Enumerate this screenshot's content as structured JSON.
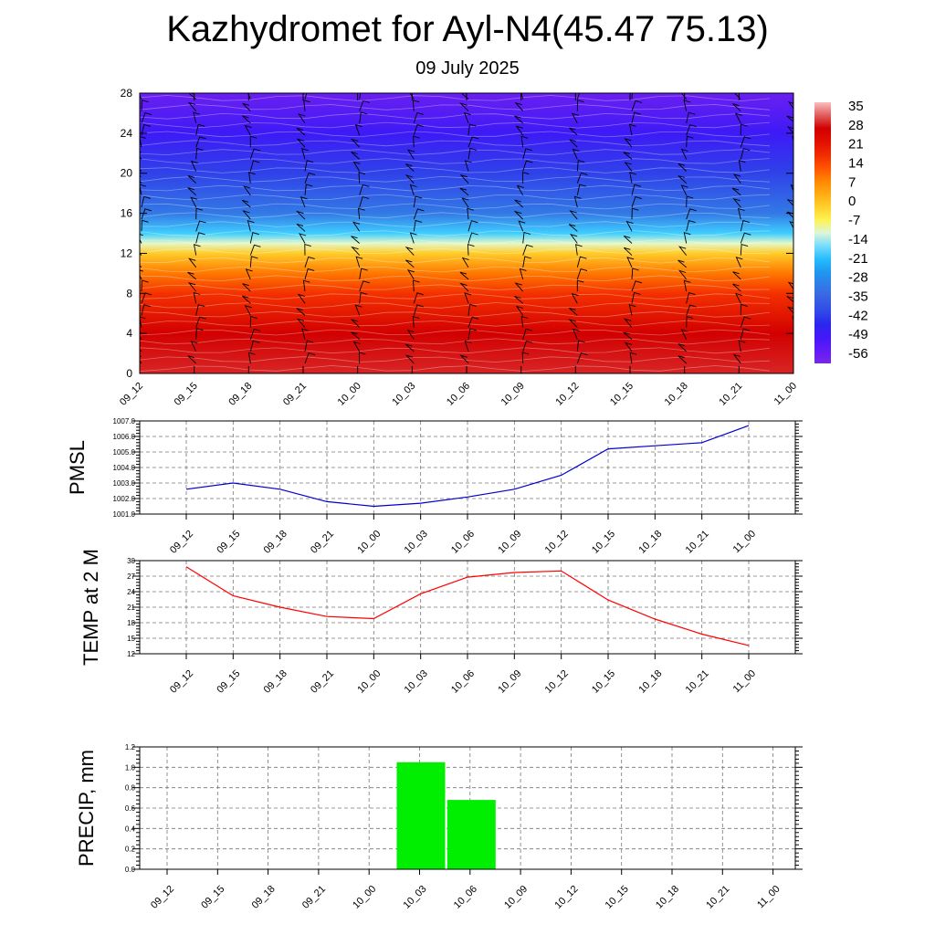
{
  "header": {
    "title": "Kazhydromet for Ayl-N4(45.47 75.13)",
    "subtitle": "09 July 2025"
  },
  "chart_data": [
    {
      "type": "heatmap",
      "xlabel": "",
      "ylabel": "",
      "x_ticks": [
        "09_12",
        "09_15",
        "09_18",
        "09_21",
        "10_00",
        "10_03",
        "10_06",
        "10_09",
        "10_12",
        "10_15",
        "10_18",
        "10_21",
        "11_00"
      ],
      "y_ticks": [
        0,
        4,
        8,
        12,
        16,
        20,
        24,
        28
      ],
      "ylim": [
        0,
        28
      ],
      "colorbar": {
        "labels": [
          35,
          28,
          21,
          14,
          7,
          0,
          -7,
          -14,
          -21,
          -28,
          -35,
          -42,
          -49,
          -56
        ],
        "range": [
          -63,
          38
        ]
      },
      "temperature_profile": [
        {
          "level": 0,
          "value": 30
        },
        {
          "level": 4,
          "value": 28
        },
        {
          "level": 8,
          "value": 17
        },
        {
          "level": 10,
          "value": 9
        },
        {
          "level": 12,
          "value": -2
        },
        {
          "level": 13,
          "value": -12
        },
        {
          "level": 14,
          "value": -20
        },
        {
          "level": 16,
          "value": -33
        },
        {
          "level": 20,
          "value": -44
        },
        {
          "level": 24,
          "value": -52
        },
        {
          "level": 28,
          "value": -60
        }
      ],
      "colors": {
        "hot": "#d40000",
        "orange": "#ff8c00",
        "yellow": "#ffff80",
        "cyan": "#33c0ff",
        "blue": "#3a5ee8",
        "violet": "#7a3cff"
      }
    },
    {
      "type": "line",
      "ylabel": "PMSL",
      "x": [
        "09_12",
        "09_15",
        "09_18",
        "09_21",
        "10_00",
        "10_03",
        "10_06",
        "10_09",
        "10_12",
        "10_15",
        "10_18",
        "10_21",
        "11_00"
      ],
      "values": [
        1002.6,
        1003.0,
        1002.6,
        1001.8,
        1001.5,
        1001.7,
        1002.1,
        1002.6,
        1003.5,
        1005.2,
        1005.4,
        1005.6,
        1006.7
      ],
      "y_ticks": [
        "1001.0",
        "1002.0",
        "1003.0",
        "1004.0",
        "1005.0",
        "1006.0",
        "1007.0"
      ],
      "ylim": [
        1001.0,
        1007.0
      ],
      "color": "#0000cc",
      "grid": true
    },
    {
      "type": "line",
      "ylabel": "TEMP at 2 M",
      "x": [
        "09_12",
        "09_15",
        "09_18",
        "09_21",
        "10_00",
        "10_03",
        "10_06",
        "10_09",
        "10_12",
        "10_15",
        "10_18",
        "10_21",
        "11_00"
      ],
      "values": [
        28.8,
        23.2,
        21.0,
        19.2,
        18.8,
        23.6,
        26.8,
        27.7,
        28.0,
        22.4,
        18.7,
        15.8,
        13.6
      ],
      "y_ticks": [
        "12",
        "15",
        "18",
        "21",
        "24",
        "27",
        "30"
      ],
      "ylim": [
        12,
        30
      ],
      "color": "#ff0000",
      "grid": true
    },
    {
      "type": "bar",
      "ylabel": "PRECIP, mm",
      "categories": [
        "09_12",
        "09_15",
        "09_18",
        "09_21",
        "10_00",
        "10_03",
        "10_06",
        "10_09",
        "10_12",
        "10_15",
        "10_18",
        "10_21",
        "11_00"
      ],
      "values": [
        0,
        0,
        0,
        0,
        0,
        1.05,
        0.68,
        0,
        0,
        0,
        0,
        0,
        0
      ],
      "y_ticks": [
        "0.0",
        "0.2",
        "0.4",
        "0.6",
        "0.8",
        "1.0",
        "1.2"
      ],
      "ylim": [
        0,
        1.2
      ],
      "color": "#00ee00",
      "grid": true
    }
  ]
}
